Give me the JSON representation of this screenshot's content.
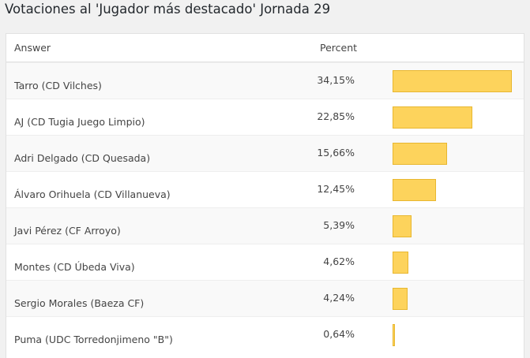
{
  "chart_data": {
    "type": "bar",
    "title": "Votaciones al 'Jugador más destacado' Jornada 29",
    "columns": [
      "Answer",
      "Percent"
    ],
    "categories": [
      "Tarro (CD Vilches)",
      "AJ (CD Tugia Juego Limpio)",
      "Adri Delgado (CD Quesada)",
      "Álvaro Orihuela (CD Villanueva)",
      "Javi Pérez (CF Arroyo)",
      "Montes (CD Úbeda Viva)",
      "Sergio Morales (Baeza CF)",
      "Puma (UDC Torredonjimeno \"B\")"
    ],
    "values": [
      34.15,
      22.85,
      15.66,
      12.45,
      5.39,
      4.62,
      4.24,
      0.64
    ],
    "value_labels": [
      "34,15%",
      "22,85%",
      "15,66%",
      "12,45%",
      "5,39%",
      "4,62%",
      "4,24%",
      "0,64%"
    ],
    "color": "#fdd35c"
  }
}
